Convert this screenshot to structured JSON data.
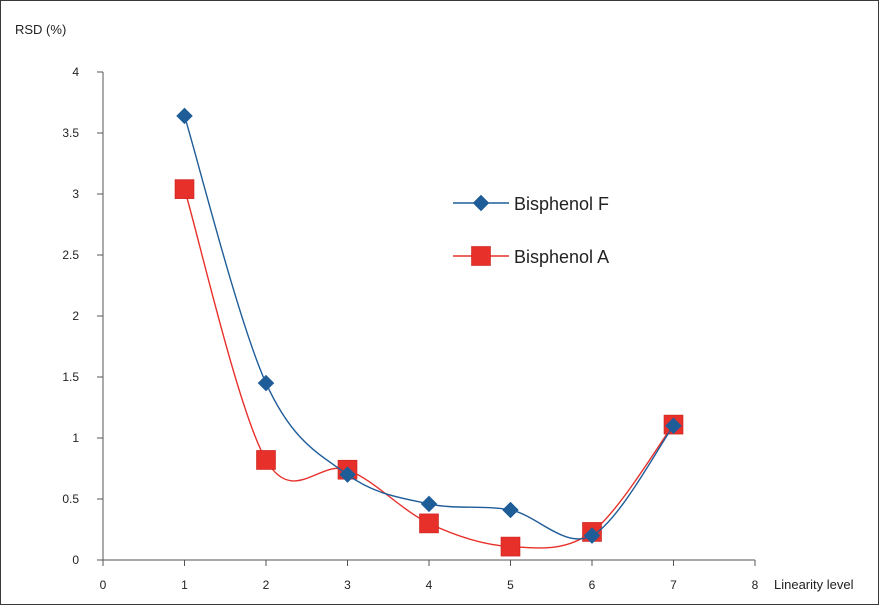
{
  "chart_data": {
    "type": "line",
    "ylabel": "RSD (%)",
    "xlabel": "Linearity level",
    "xlim": [
      0,
      8
    ],
    "ylim": [
      0,
      4
    ],
    "xticks": [
      "0",
      "1",
      "2",
      "3",
      "4",
      "5",
      "6",
      "7",
      "8"
    ],
    "yticks": [
      "0",
      "0.5",
      "1",
      "1.5",
      "2",
      "2.5",
      "3",
      "3.5",
      "4"
    ],
    "grid": false,
    "legend_position": "top-right",
    "smooth": true,
    "series": [
      {
        "name": "Bisphenol F",
        "marker": "diamond",
        "color": "#1f5d99",
        "x": [
          1,
          2,
          3,
          4,
          5,
          6,
          7
        ],
        "values": [
          3.64,
          1.45,
          0.7,
          0.46,
          0.41,
          0.2,
          1.1
        ]
      },
      {
        "name": "Bisphenol A",
        "marker": "square",
        "color": "#e8302a",
        "x": [
          1,
          2,
          3,
          4,
          5,
          6,
          7
        ],
        "values": [
          3.04,
          0.82,
          0.74,
          0.3,
          0.11,
          0.23,
          1.11
        ]
      }
    ]
  }
}
